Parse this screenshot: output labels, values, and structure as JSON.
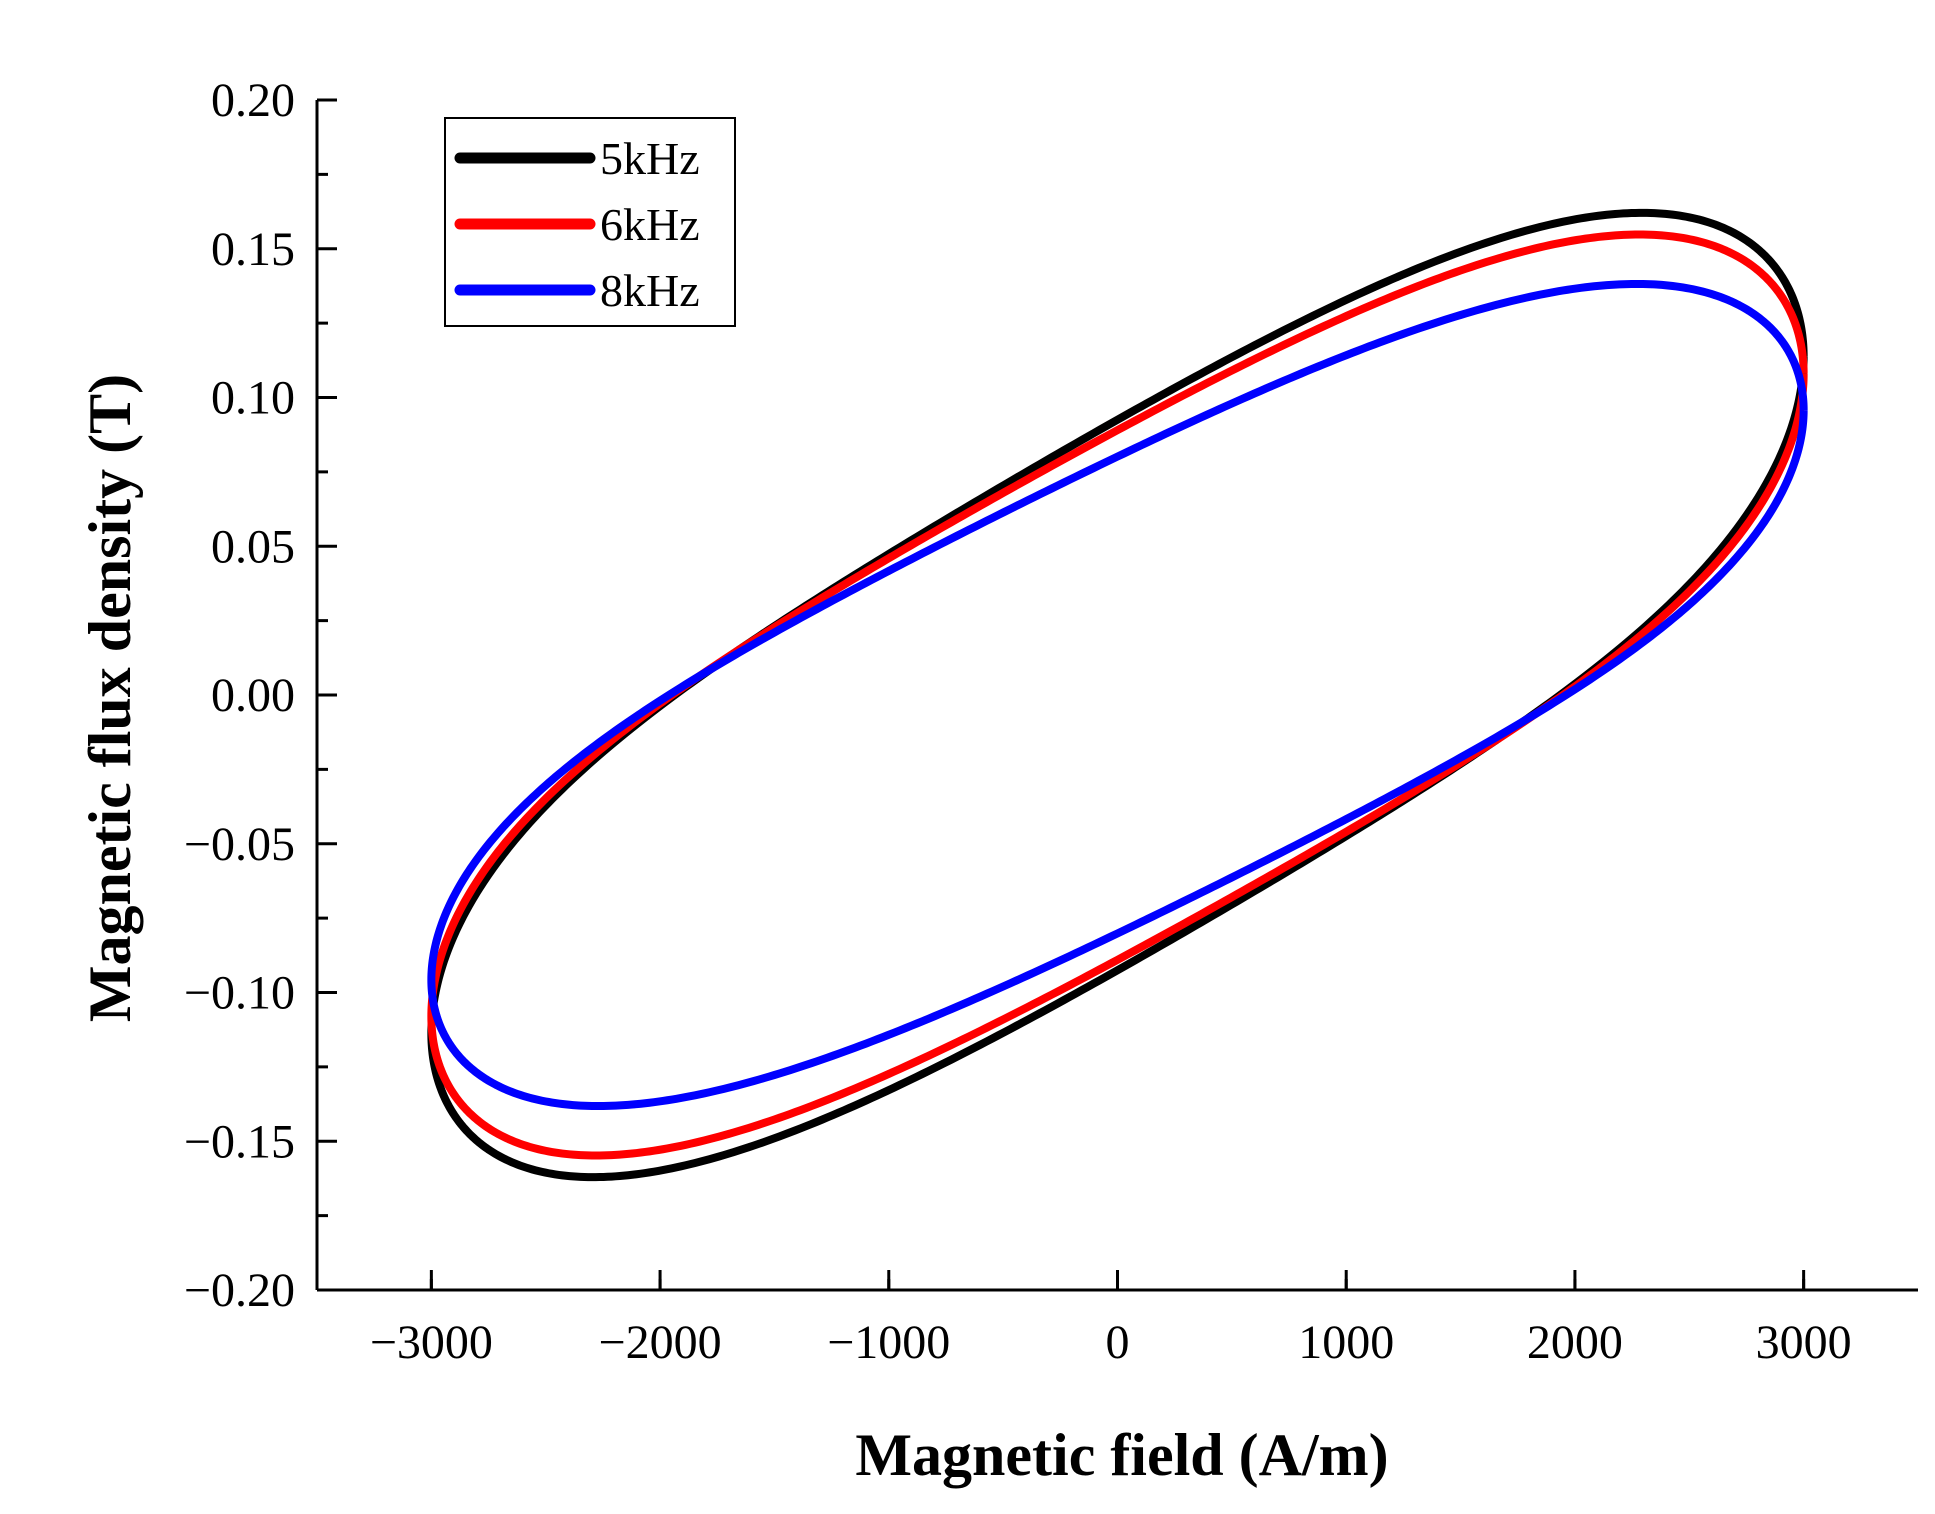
{
  "chart_data": {
    "type": "line",
    "title": "",
    "xlabel": "Magnetic field (A/m)",
    "ylabel": "Magnetic flux density (T)",
    "xlim": [
      -3500,
      3500
    ],
    "ylim": [
      -0.2,
      0.2
    ],
    "x_ticks": [
      -3000,
      -2000,
      -1000,
      0,
      1000,
      2000,
      3000
    ],
    "x_tick_labels": [
      "−3000",
      "−2000",
      "−1000",
      "0",
      "1000",
      "2000",
      "3000"
    ],
    "y_ticks": [
      0.2,
      0.15,
      0.1,
      0.05,
      0.0,
      -0.05,
      -0.1,
      -0.15,
      -0.2
    ],
    "y_tick_labels": [
      "0.20",
      "0.15",
      "0.10",
      "0.05",
      "0.00",
      "−0.05",
      "−0.10",
      "−0.15",
      "−0.20"
    ],
    "grid": false,
    "legend_position": "top-left",
    "series": [
      {
        "name": "5kHz",
        "color": "#000000",
        "Hmax": 3000,
        "Bmax": 0.122,
        "B_at_H0": 0.103,
        "H_at_Bpeak": 2400,
        "B_peak": 0.152
      },
      {
        "name": "6kHz",
        "color": "#ff0000",
        "Hmax": 3000,
        "Bmax": 0.116,
        "B_at_H0": 0.099,
        "H_at_Bpeak": 2350,
        "B_peak": 0.143
      },
      {
        "name": "8kHz",
        "color": "#0000ff",
        "Hmax": 3000,
        "Bmax": 0.103,
        "B_at_H0": 0.089,
        "H_at_Bpeak": 2300,
        "B_peak": 0.128
      }
    ]
  }
}
